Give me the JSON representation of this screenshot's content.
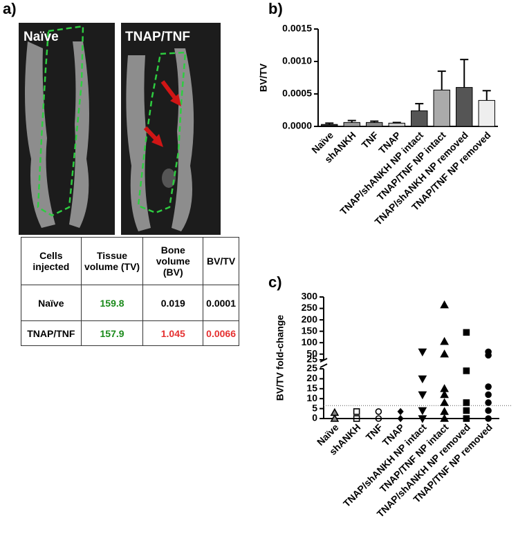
{
  "panels": {
    "a": "a)",
    "b": "b)",
    "c": "c)"
  },
  "images": [
    {
      "label": "Naïve"
    },
    {
      "label": "TNAP/TNF"
    }
  ],
  "table": {
    "header": [
      "Cells injected",
      "Tissue volume (TV)",
      "Bone volume (BV)",
      "BV/TV"
    ],
    "rows": [
      [
        "Naïve",
        "159.8",
        "0.019",
        "0.0001"
      ],
      [
        "TNAP/TNF",
        "157.9",
        "1.045",
        "0.0066"
      ]
    ]
  },
  "chart_data": [
    {
      "type": "bar",
      "ylabel": "BV/TV",
      "categories": [
        "Naïve",
        "shANKH",
        "TNF",
        "TNAP",
        "TNAP/shANKH NP intact",
        "TNAP/TNF NP intact",
        "TNAP/shANKH NP removed",
        "TNAP/TNF NP removed"
      ],
      "values": [
        3e-05,
        6e-05,
        6e-05,
        5e-05,
        0.00024,
        0.00056,
        0.0006,
        0.0004
      ],
      "errors": [
        2e-05,
        3e-05,
        2e-05,
        1e-05,
        0.00011,
        0.00029,
        0.00043,
        0.00015
      ],
      "colors": [
        "#222222",
        "#999999",
        "#888888",
        "#cccccc",
        "#555555",
        "#aaaaaa",
        "#555555",
        "#eeeeee"
      ],
      "ylim": [
        0,
        0.0015
      ],
      "yticks": [
        {
          "value": 0,
          "label": "0.0000"
        },
        {
          "value": 0.0005,
          "label": "0.0005"
        },
        {
          "value": 0.001,
          "label": "0.0010"
        },
        {
          "value": 0.0015,
          "label": "0.0015"
        }
      ]
    },
    {
      "type": "strip",
      "ylabel": "BV/TV fold-change",
      "categories": [
        "Naïve",
        "shANKH",
        "TNF",
        "TNAP",
        "TNAP/shANKH NP intact",
        "TNAP/TNF NP intact",
        "TNAP/shANKH NP removed",
        "TNAP/TNF NP removed"
      ],
      "groups": [
        {
          "marker": "triangle",
          "fill": "#888888",
          "values": [
            0,
            3
          ]
        },
        {
          "marker": "square",
          "fill": "none",
          "values": [
            0,
            3.5
          ]
        },
        {
          "marker": "circle",
          "fill": "none",
          "values": [
            0,
            3.5
          ]
        },
        {
          "marker": "diamond",
          "fill": "#000000",
          "values": [
            0,
            3.5
          ]
        },
        {
          "marker": "triangle-down",
          "fill": "#000000",
          "values": [
            0,
            4,
            12,
            20,
            60
          ]
        },
        {
          "marker": "triangle",
          "fill": "#000000",
          "values": [
            0,
            3.5,
            8,
            12,
            15,
            50,
            105,
            265
          ]
        },
        {
          "marker": "square",
          "fill": "#000000",
          "values": [
            0,
            4,
            8,
            24,
            145
          ]
        },
        {
          "marker": "circle",
          "fill": "#000000",
          "values": [
            0,
            4,
            8,
            12,
            16,
            45,
            60
          ]
        }
      ],
      "reference_line": 6.5,
      "segments": [
        {
          "ylim": [
            0,
            25
          ],
          "yticks": [
            0,
            5,
            10,
            15,
            20,
            25
          ]
        },
        {
          "ylim": [
            25,
            300
          ],
          "yticks": [
            25,
            50,
            100,
            150,
            200,
            250,
            300
          ]
        }
      ]
    }
  ]
}
